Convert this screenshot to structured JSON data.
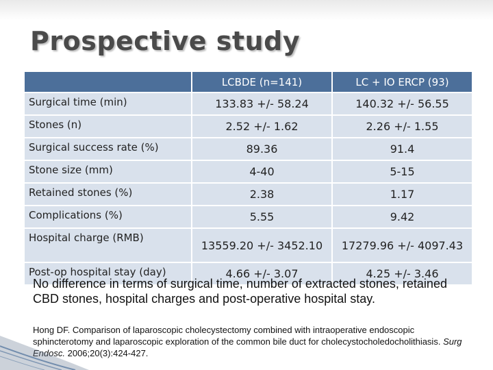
{
  "title": "Prospective study",
  "table": {
    "headers": [
      "",
      "LCBDE (n=141)",
      "LC + IO ERCP (93)"
    ],
    "rows": [
      {
        "label": "Surgical time (min)",
        "lcbde": "133.83 +/- 58.24",
        "ercp": "140.32 +/- 56.55"
      },
      {
        "label": "Stones (n)",
        "lcbde": "2.52 +/- 1.62",
        "ercp": "2.26 +/- 1.55"
      },
      {
        "label": "Surgical success rate (%)",
        "lcbde": "89.36",
        "ercp": "91.4"
      },
      {
        "label": "Stone size (mm)",
        "lcbde": "4-40",
        "ercp": "5-15"
      },
      {
        "label": "Retained stones (%)",
        "lcbde": "2.38",
        "ercp": "1.17"
      },
      {
        "label": "Complications (%)",
        "lcbde": "5.55",
        "ercp": "9.42"
      },
      {
        "label": "Hospital charge (RMB)",
        "lcbde": "13559.20 +/- 3452.10",
        "ercp": "17279.96 +/- 4097.43"
      },
      {
        "label": "Post-op hospital stay (day)",
        "lcbde": "4.66 +/- 3.07",
        "ercp": "4.25 +/- 3.46"
      }
    ]
  },
  "conclusion": "No difference in terms of surgical time, number of extracted stones, retained CBD stones, hospital charges and post-operative hospital stay.",
  "citation": {
    "authors": "Hong DF.",
    "article": "Comparison of laparoscopic cholecystectomy combined with intraoperative endoscopic sphincterotomy and laparoscopic exploration of the common bile duct for cholecystocholedocholithiasis.",
    "journal": "Surg Endosc.",
    "details": "2006;20(3):424-427."
  },
  "colors": {
    "header_bg": "#4c6f9a",
    "cell_bg": "#d9e1ec",
    "title": "#4a4a4a"
  }
}
